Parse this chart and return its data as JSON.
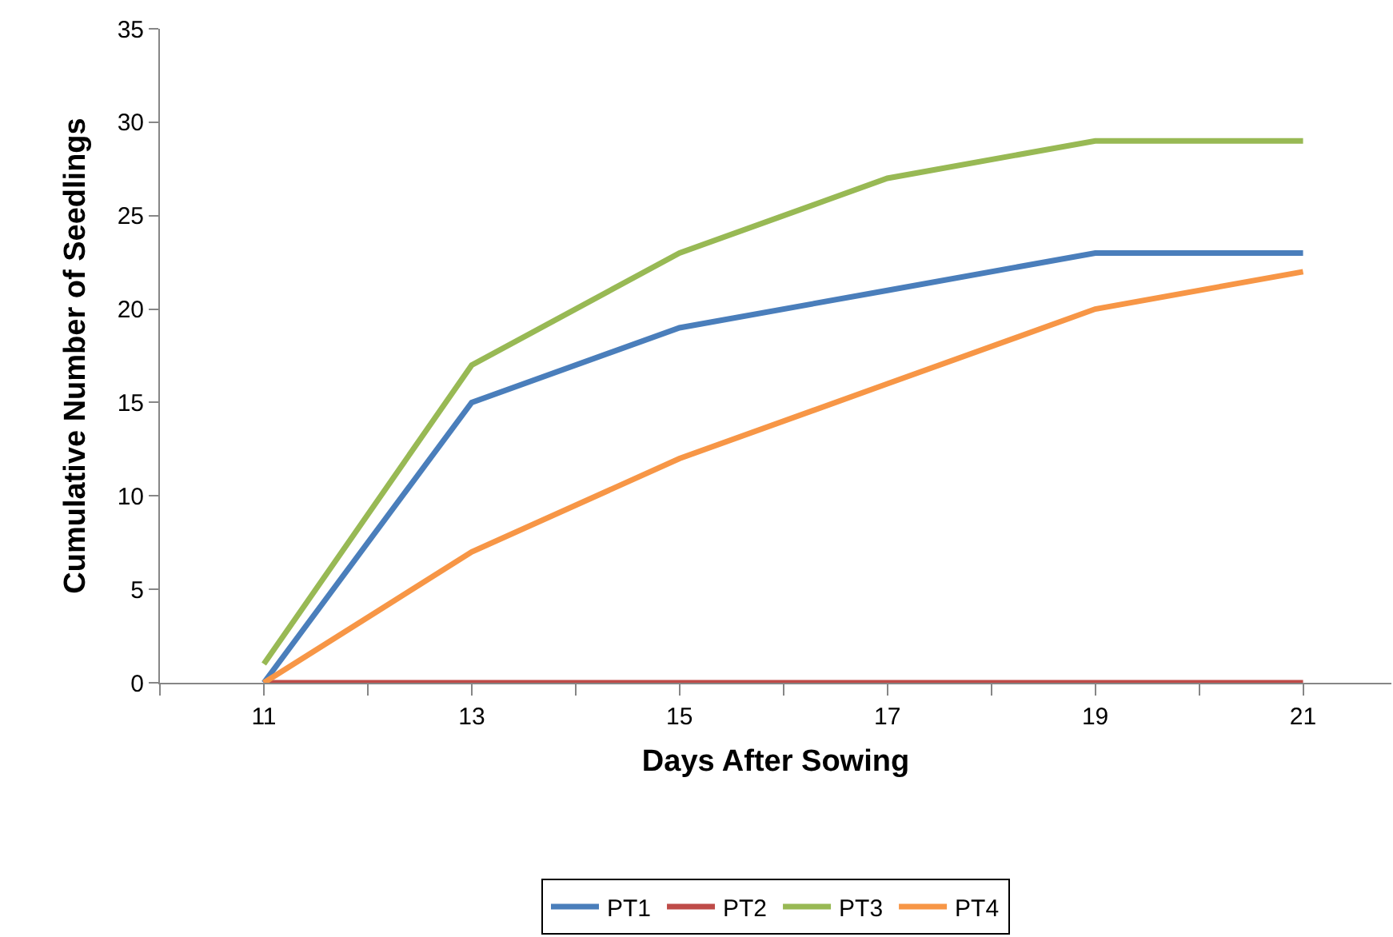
{
  "chart_data": {
    "type": "line",
    "xlabel": "Days After Sowing",
    "ylabel": "Cumulative Number of Seedlings",
    "x": [
      11,
      13,
      15,
      17,
      19,
      21
    ],
    "series": [
      {
        "name": "PT1",
        "color": "#4a7ebb",
        "values": [
          0,
          15,
          19,
          21,
          23,
          23
        ]
      },
      {
        "name": "PT2",
        "color": "#be4b48",
        "values": [
          0,
          0,
          0,
          0,
          0,
          0
        ]
      },
      {
        "name": "PT3",
        "color": "#98b954",
        "values": [
          1,
          17,
          23,
          27,
          29,
          29
        ]
      },
      {
        "name": "PT4",
        "color": "#f79646",
        "values": [
          0,
          7,
          12,
          16,
          20,
          22
        ]
      }
    ],
    "xlim": [
      10,
      21.85
    ],
    "xticks": [
      {
        "value": 10,
        "label": null
      },
      11,
      {
        "value": 12,
        "label": null
      },
      13,
      {
        "value": 14,
        "label": null
      },
      15,
      {
        "value": 16,
        "label": null
      },
      17,
      {
        "value": 18,
        "label": null
      },
      19,
      {
        "value": 20,
        "label": null
      },
      21
    ],
    "ylim": [
      0,
      35
    ],
    "yticks": [
      0,
      5,
      10,
      15,
      20,
      25,
      30,
      35
    ],
    "legend": "bottom",
    "marker": "none",
    "line_style": "solid"
  }
}
